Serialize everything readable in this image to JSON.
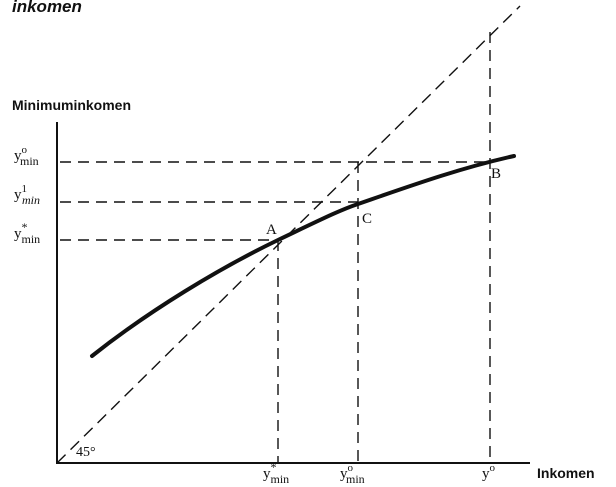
{
  "header": {
    "title_fragment": "inkomen"
  },
  "axes": {
    "y_label": "Minimuminkomen",
    "x_label": "Inkomen",
    "angle_label": "45°"
  },
  "points": {
    "a": "A",
    "b": "B",
    "c": "C"
  },
  "y_ticks": {
    "y0_base": "y",
    "y0_sup": "o",
    "y0_sub": "min",
    "y1_base": "y",
    "y1_sup": "1",
    "y1_sub": "min",
    "ystar_base": "y",
    "ystar_sup": "*",
    "ystar_sub": "min"
  },
  "x_ticks": {
    "ystar_base": "y",
    "ystar_sup": "*",
    "ystar_sub": "min",
    "y0min_base": "y",
    "y0min_sup": "o",
    "y0min_sub": "min",
    "y0_base": "y",
    "y0_sup": "o"
  }
}
